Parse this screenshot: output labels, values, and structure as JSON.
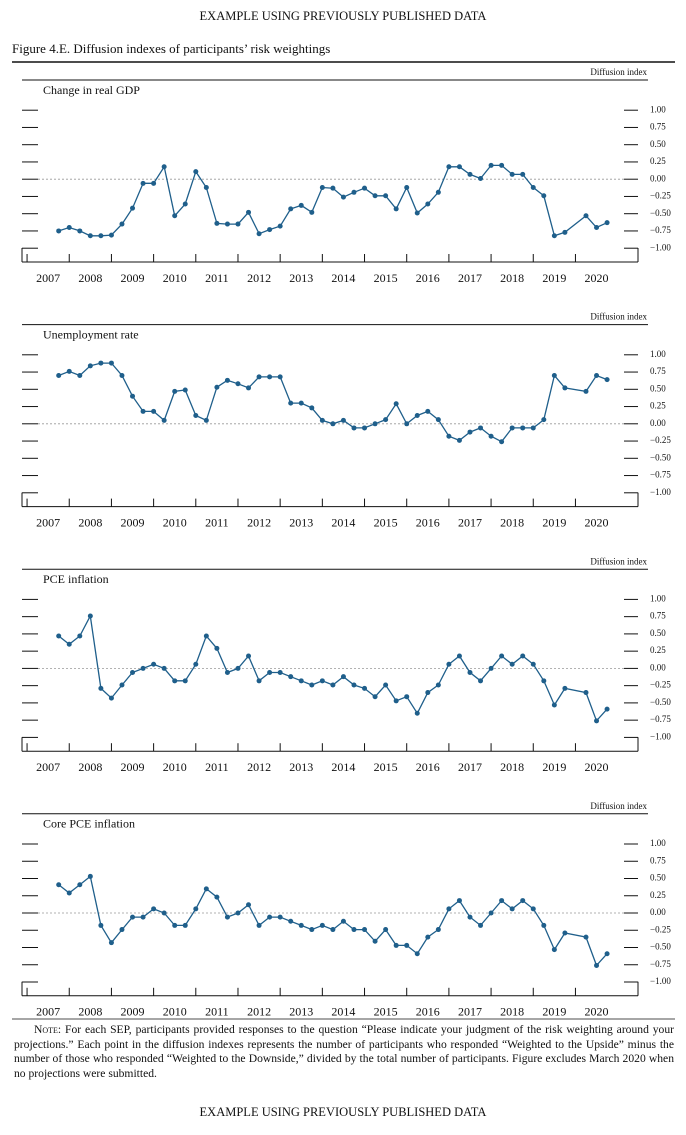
{
  "header": "EXAMPLE USING PREVIOUSLY PUBLISHED DATA",
  "figure_title": "Figure 4.E. Diffusion indexes of participants’ risk weightings",
  "chart_data": [
    {
      "type": "line",
      "title": "Change in real GDP",
      "y_axis_label": "Diffusion index",
      "color": "#1f5f8b",
      "x": [
        2007.75,
        2008,
        2008.25,
        2008.5,
        2008.75,
        2009,
        2009.25,
        2009.5,
        2009.75,
        2010,
        2010.25,
        2010.5,
        2010.75,
        2011,
        2011.25,
        2011.5,
        2011.75,
        2012,
        2012.25,
        2012.5,
        2012.75,
        2013,
        2013.25,
        2013.5,
        2013.75,
        2014,
        2014.25,
        2014.5,
        2014.75,
        2015,
        2015.25,
        2015.5,
        2015.75,
        2016,
        2016.25,
        2016.5,
        2016.75,
        2017,
        2017.25,
        2017.5,
        2017.75,
        2018,
        2018.25,
        2018.5,
        2018.75,
        2019,
        2019.25,
        2019.5,
        2019.75,
        2020.25,
        2020.5,
        2020.75
      ],
      "values": [
        -0.75,
        -0.7,
        -0.75,
        -0.82,
        -0.82,
        -0.81,
        -0.65,
        -0.42,
        -0.06,
        -0.06,
        0.18,
        -0.53,
        -0.36,
        0.11,
        -0.12,
        -0.64,
        -0.65,
        -0.65,
        -0.48,
        -0.79,
        -0.73,
        -0.68,
        -0.43,
        -0.38,
        -0.48,
        -0.12,
        -0.13,
        -0.26,
        -0.19,
        -0.13,
        -0.24,
        -0.24,
        -0.43,
        -0.12,
        -0.49,
        -0.36,
        -0.19,
        0.18,
        0.18,
        0.07,
        0.01,
        0.2,
        0.2,
        0.07,
        0.07,
        -0.12,
        -0.24,
        -0.82,
        -0.77,
        -0.53,
        -0.7,
        -0.63
      ],
      "xlim": [
        2006.88,
        2021.72
      ],
      "xticks": [
        2007,
        2008,
        2009,
        2010,
        2011,
        2012,
        2013,
        2014,
        2015,
        2016,
        2017,
        2018,
        2019,
        2020
      ],
      "ylim": [
        -1.2,
        1.2
      ],
      "yticks": [
        {
          "value": 1,
          "label": "1.00"
        },
        0.75,
        {
          "value": 0.5,
          "label": "0.50"
        },
        0.25,
        {
          "value": 0,
          "label": "0.00"
        },
        {
          "value": -0.25,
          "label": "−0.25"
        },
        {
          "value": -0.5,
          "label": "−0.50"
        },
        {
          "value": -0.75,
          "label": "−0.75"
        },
        {
          "value": -1,
          "label": "−1.00"
        }
      ],
      "zero_line": true
    },
    {
      "type": "line",
      "title": "Unemployment rate",
      "y_axis_label": "Diffusion index",
      "color": "#1f5f8b",
      "x": [
        2007.75,
        2008,
        2008.25,
        2008.5,
        2008.75,
        2009,
        2009.25,
        2009.5,
        2009.75,
        2010,
        2010.25,
        2010.5,
        2010.75,
        2011,
        2011.25,
        2011.5,
        2011.75,
        2012,
        2012.25,
        2012.5,
        2012.75,
        2013,
        2013.25,
        2013.5,
        2013.75,
        2014,
        2014.25,
        2014.5,
        2014.75,
        2015,
        2015.25,
        2015.5,
        2015.75,
        2016,
        2016.25,
        2016.5,
        2016.75,
        2017,
        2017.25,
        2017.5,
        2017.75,
        2018,
        2018.25,
        2018.5,
        2018.75,
        2019,
        2019.25,
        2019.5,
        2019.75,
        2020.25,
        2020.5,
        2020.75
      ],
      "values": [
        0.7,
        0.76,
        0.7,
        0.84,
        0.88,
        0.88,
        0.7,
        0.4,
        0.18,
        0.18,
        0.05,
        0.47,
        0.49,
        0.12,
        0.05,
        0.53,
        0.63,
        0.58,
        0.52,
        0.68,
        0.68,
        0.68,
        0.3,
        0.3,
        0.23,
        0.05,
        0.0,
        0.05,
        -0.06,
        -0.06,
        0.0,
        0.06,
        0.29,
        0.0,
        0.12,
        0.18,
        0.06,
        -0.18,
        -0.24,
        -0.12,
        -0.06,
        -0.18,
        -0.26,
        -0.06,
        -0.06,
        -0.06,
        0.06,
        0.7,
        0.52,
        0.47,
        0.7,
        0.64
      ],
      "xlim": [
        2006.88,
        2021.72
      ],
      "xticks": [
        2007,
        2008,
        2009,
        2010,
        2011,
        2012,
        2013,
        2014,
        2015,
        2016,
        2017,
        2018,
        2019,
        2020
      ],
      "ylim": [
        -1.2,
        1.2
      ],
      "yticks": [
        {
          "value": 1,
          "label": "1.00"
        },
        0.75,
        {
          "value": 0.5,
          "label": "0.50"
        },
        0.25,
        {
          "value": 0,
          "label": "0.00"
        },
        {
          "value": -0.25,
          "label": "−0.25"
        },
        {
          "value": -0.5,
          "label": "−0.50"
        },
        {
          "value": -0.75,
          "label": "−0.75"
        },
        {
          "value": -1,
          "label": "−1.00"
        }
      ],
      "zero_line": true
    },
    {
      "type": "line",
      "title": "PCE inflation",
      "y_axis_label": "Diffusion index",
      "color": "#1f5f8b",
      "x": [
        2007.75,
        2008,
        2008.25,
        2008.5,
        2008.75,
        2009,
        2009.25,
        2009.5,
        2009.75,
        2010,
        2010.25,
        2010.5,
        2010.75,
        2011,
        2011.25,
        2011.5,
        2011.75,
        2012,
        2012.25,
        2012.5,
        2012.75,
        2013,
        2013.25,
        2013.5,
        2013.75,
        2014,
        2014.25,
        2014.5,
        2014.75,
        2015,
        2015.25,
        2015.5,
        2015.75,
        2016,
        2016.25,
        2016.5,
        2016.75,
        2017,
        2017.25,
        2017.5,
        2017.75,
        2018,
        2018.25,
        2018.5,
        2018.75,
        2019,
        2019.25,
        2019.5,
        2019.75,
        2020.25,
        2020.5,
        2020.75
      ],
      "values": [
        0.47,
        0.35,
        0.47,
        0.76,
        -0.29,
        -0.43,
        -0.24,
        -0.06,
        0.0,
        0.06,
        0.0,
        -0.18,
        -0.18,
        0.06,
        0.47,
        0.29,
        -0.06,
        0.0,
        0.18,
        -0.18,
        -0.06,
        -0.06,
        -0.12,
        -0.18,
        -0.24,
        -0.18,
        -0.24,
        -0.12,
        -0.24,
        -0.29,
        -0.41,
        -0.24,
        -0.47,
        -0.41,
        -0.65,
        -0.35,
        -0.24,
        0.06,
        0.18,
        -0.06,
        -0.18,
        0.0,
        0.18,
        0.06,
        0.18,
        0.06,
        -0.18,
        -0.53,
        -0.29,
        -0.35,
        -0.76,
        -0.59
      ],
      "xlim": [
        2006.88,
        2021.72
      ],
      "xticks": [
        2007,
        2008,
        2009,
        2010,
        2011,
        2012,
        2013,
        2014,
        2015,
        2016,
        2017,
        2018,
        2019,
        2020
      ],
      "ylim": [
        -1.2,
        1.2
      ],
      "yticks": [
        {
          "value": 1,
          "label": "1.00"
        },
        0.75,
        {
          "value": 0.5,
          "label": "0.50"
        },
        0.25,
        {
          "value": 0,
          "label": "0.00"
        },
        {
          "value": -0.25,
          "label": "−0.25"
        },
        {
          "value": -0.5,
          "label": "−0.50"
        },
        {
          "value": -0.75,
          "label": "−0.75"
        },
        {
          "value": -1,
          "label": "−1.00"
        }
      ],
      "zero_line": true
    },
    {
      "type": "line",
      "title": "Core PCE inflation",
      "y_axis_label": "Diffusion index",
      "color": "#1f5f8b",
      "x": [
        2007.75,
        2008,
        2008.25,
        2008.5,
        2008.75,
        2009,
        2009.25,
        2009.5,
        2009.75,
        2010,
        2010.25,
        2010.5,
        2010.75,
        2011,
        2011.25,
        2011.5,
        2011.75,
        2012,
        2012.25,
        2012.5,
        2012.75,
        2013,
        2013.25,
        2013.5,
        2013.75,
        2014,
        2014.25,
        2014.5,
        2014.75,
        2015,
        2015.25,
        2015.5,
        2015.75,
        2016,
        2016.25,
        2016.5,
        2016.75,
        2017,
        2017.25,
        2017.5,
        2017.75,
        2018,
        2018.25,
        2018.5,
        2018.75,
        2019,
        2019.25,
        2019.5,
        2019.75,
        2020.25,
        2020.5,
        2020.75
      ],
      "values": [
        0.41,
        0.29,
        0.41,
        0.53,
        -0.18,
        -0.43,
        -0.24,
        -0.06,
        -0.06,
        0.06,
        0.0,
        -0.18,
        -0.18,
        0.06,
        0.35,
        0.23,
        -0.06,
        0.0,
        0.12,
        -0.18,
        -0.06,
        -0.06,
        -0.12,
        -0.18,
        -0.24,
        -0.18,
        -0.24,
        -0.12,
        -0.24,
        -0.24,
        -0.41,
        -0.24,
        -0.47,
        -0.47,
        -0.59,
        -0.35,
        -0.24,
        0.06,
        0.18,
        -0.06,
        -0.18,
        0.0,
        0.18,
        0.06,
        0.18,
        0.06,
        -0.18,
        -0.53,
        -0.29,
        -0.35,
        -0.76,
        -0.59
      ],
      "xlim": [
        2006.88,
        2021.72
      ],
      "xticks": [
        2007,
        2008,
        2009,
        2010,
        2011,
        2012,
        2013,
        2014,
        2015,
        2016,
        2017,
        2018,
        2019,
        2020
      ],
      "ylim": [
        -1.2,
        1.2
      ],
      "yticks": [
        {
          "value": 1,
          "label": "1.00"
        },
        0.75,
        {
          "value": 0.5,
          "label": "0.50"
        },
        0.25,
        {
          "value": 0,
          "label": "0.00"
        },
        {
          "value": -0.25,
          "label": "−0.25"
        },
        {
          "value": -0.5,
          "label": "−0.50"
        },
        {
          "value": -0.75,
          "label": "−0.75"
        },
        {
          "value": -1,
          "label": "−1.00"
        }
      ],
      "zero_line": true
    }
  ],
  "note": {
    "label": "Note:",
    "text": "For each SEP, participants provided responses to the question “Please indicate your judgment of the risk weighting around your projections.” Each point in the diffusion indexes represents the number of participants who responded “Weighted to the Upside” minus the number of those who responded “Weighted to the Downside,” divided by the total number of participants. Figure excludes March 2020 when no projections were submitted."
  },
  "footer": "EXAMPLE USING PREVIOUSLY PUBLISHED DATA"
}
